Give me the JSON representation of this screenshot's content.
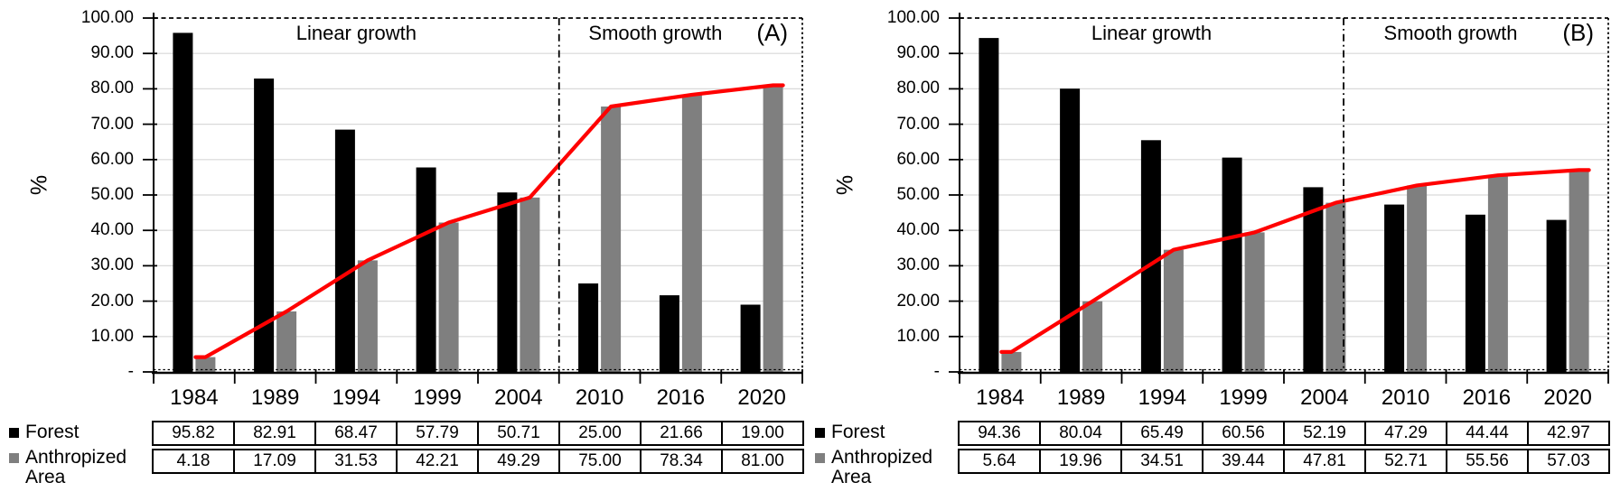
{
  "chart_data": [
    {
      "type": "bar",
      "panel_label": "(A)",
      "ylabel": "%",
      "ylim": [
        0,
        100
      ],
      "grid": true,
      "legend_position": "bottom-left",
      "y_ticks": [
        {
          "label": "100.00",
          "value": 100
        },
        {
          "label": "90.00",
          "value": 90
        },
        {
          "label": "80.00",
          "value": 80
        },
        {
          "label": "70.00",
          "value": 70
        },
        {
          "label": "60.00",
          "value": 60
        },
        {
          "label": "50.00",
          "value": 50
        },
        {
          "label": "40.00",
          "value": 40
        },
        {
          "label": "30.00",
          "value": 30
        },
        {
          "label": "20.00",
          "value": 20
        },
        {
          "label": "10.00",
          "value": 10
        },
        {
          "label": "-",
          "value": 0
        }
      ],
      "categories": [
        "1984",
        "1989",
        "1994",
        "1999",
        "2004",
        "2010",
        "2016",
        "2020"
      ],
      "series": [
        {
          "name": "Forest",
          "type": "bar",
          "color": "#000000",
          "values": [
            95.82,
            82.91,
            68.47,
            57.79,
            50.71,
            25.0,
            21.66,
            19.0
          ]
        },
        {
          "name": "Anthropized Area",
          "type": "bar",
          "color": "#7f7f7f",
          "values": [
            4.18,
            17.09,
            31.53,
            42.21,
            49.29,
            75.0,
            78.34,
            81.0
          ]
        },
        {
          "name": "Anthropized Area trend",
          "type": "line",
          "color": "#ff0000",
          "values": [
            4.18,
            17.09,
            31.53,
            42.21,
            49.29,
            75.0,
            78.34,
            81.0
          ]
        }
      ],
      "sections": [
        {
          "label": "Linear growth"
        },
        {
          "label": "Smooth growth"
        }
      ],
      "divider_fraction": 0.625,
      "table": {
        "rows": [
          {
            "label": "Forest",
            "swatch": "#000000",
            "values": [
              "95.82",
              "82.91",
              "68.47",
              "57.79",
              "50.71",
              "25.00",
              "21.66",
              "19.00"
            ]
          },
          {
            "label": "Anthropized Area",
            "swatch": "#7f7f7f",
            "values": [
              "4.18",
              "17.09",
              "31.53",
              "42.21",
              "49.29",
              "75.00",
              "78.34",
              "81.00"
            ]
          }
        ]
      }
    },
    {
      "type": "bar",
      "panel_label": "(B)",
      "ylabel": "%",
      "ylim": [
        0,
        100
      ],
      "grid": true,
      "legend_position": "bottom-left",
      "y_ticks": [
        {
          "label": "100.00",
          "value": 100
        },
        {
          "label": "90.00",
          "value": 90
        },
        {
          "label": "80.00",
          "value": 80
        },
        {
          "label": "70.00",
          "value": 70
        },
        {
          "label": "60.00",
          "value": 60
        },
        {
          "label": "50.00",
          "value": 50
        },
        {
          "label": "40.00",
          "value": 40
        },
        {
          "label": "30.00",
          "value": 30
        },
        {
          "label": "20.00",
          "value": 20
        },
        {
          "label": "10.00",
          "value": 10
        },
        {
          "label": "-",
          "value": 0
        }
      ],
      "categories": [
        "1984",
        "1989",
        "1994",
        "1999",
        "2004",
        "2010",
        "2016",
        "2020"
      ],
      "series": [
        {
          "name": "Forest",
          "type": "bar",
          "color": "#000000",
          "values": [
            94.36,
            80.04,
            65.49,
            60.56,
            52.19,
            47.29,
            44.44,
            42.97
          ]
        },
        {
          "name": "Anthropized Area",
          "type": "bar",
          "color": "#7f7f7f",
          "values": [
            5.64,
            19.96,
            34.51,
            39.44,
            47.81,
            52.71,
            55.56,
            57.03
          ]
        },
        {
          "name": "Anthropized Area trend",
          "type": "line",
          "color": "#ff0000",
          "values": [
            5.64,
            19.96,
            34.51,
            39.44,
            47.81,
            52.71,
            55.56,
            57.03
          ]
        }
      ],
      "sections": [
        {
          "label": "Linear growth"
        },
        {
          "label": "Smooth growth"
        }
      ],
      "divider_fraction": 0.592,
      "table": {
        "rows": [
          {
            "label": "Forest",
            "swatch": "#000000",
            "values": [
              "94.36",
              "80.04",
              "65.49",
              "60.56",
              "52.19",
              "47.29",
              "44.44",
              "42.97"
            ]
          },
          {
            "label": "Anthropized Area",
            "swatch": "#7f7f7f",
            "values": [
              "5.64",
              "19.96",
              "34.51",
              "39.44",
              "47.81",
              "52.71",
              "55.56",
              "57.03"
            ]
          }
        ]
      }
    }
  ],
  "style": {
    "grid_color": "#d9d9d9",
    "axis_color": "#000000",
    "forest_color": "#000000",
    "anthropized_color": "#7f7f7f",
    "trend_color": "#ff0000"
  }
}
